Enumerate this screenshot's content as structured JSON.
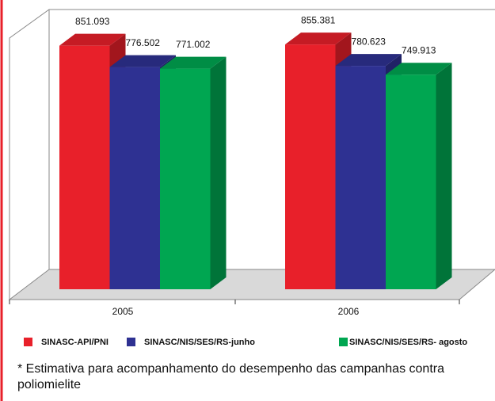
{
  "chart_data": {
    "type": "bar3d",
    "categories": [
      "2005",
      "2006"
    ],
    "series": [
      {
        "name": "SINASC-API/PNI",
        "color": "#e8202a",
        "values": [
          851093,
          855381
        ],
        "value_labels": [
          "851.093",
          "855.381"
        ]
      },
      {
        "name": "SINASC/NIS/SES/RS-junho",
        "color": "#2e3192",
        "values": [
          776502,
          780623
        ],
        "value_labels": [
          "776.502",
          "780.623"
        ]
      },
      {
        "name": "SINASC/NIS/SES/RS- agosto",
        "color": "#00a651",
        "values": [
          771002,
          749913
        ],
        "value_labels": [
          "771.002",
          "749.913"
        ]
      }
    ],
    "ylim": [
      0,
      900000
    ],
    "footnote": "* Estimativa para acompanhamento do desempenho das campanhas contra poliomielite"
  }
}
